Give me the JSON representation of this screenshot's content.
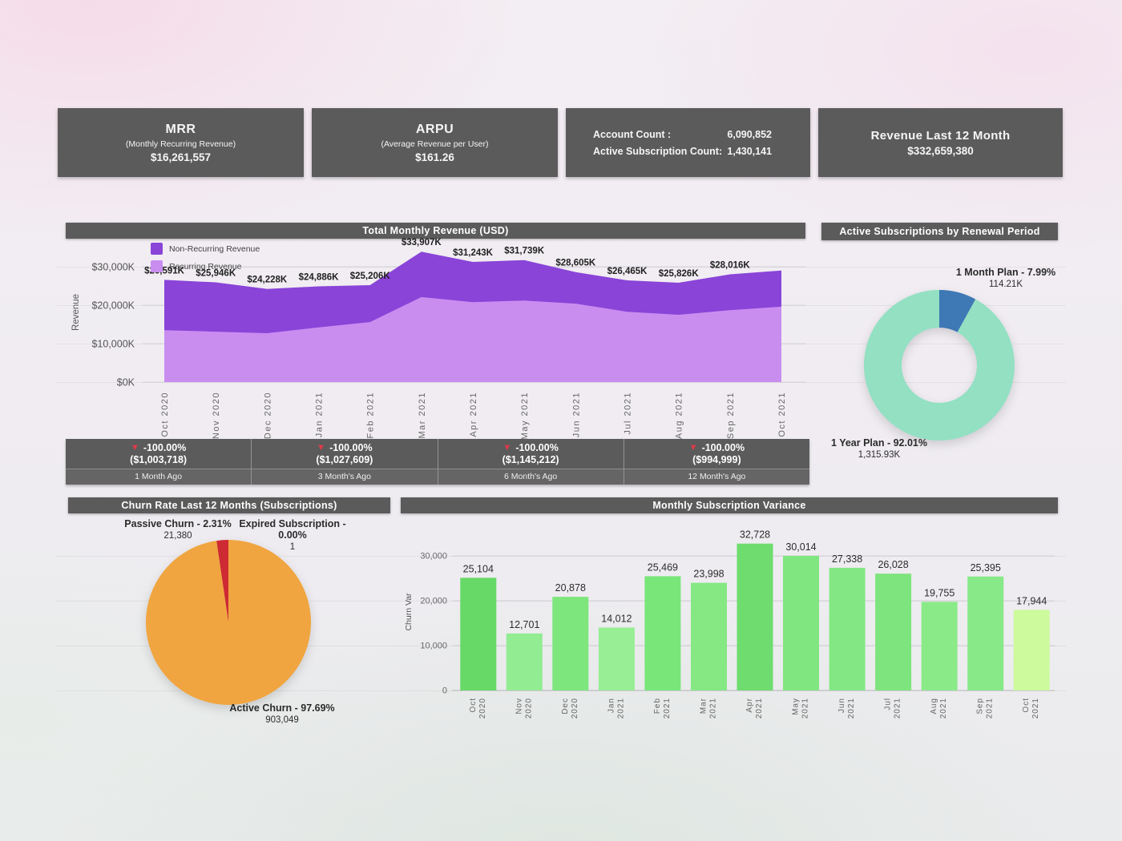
{
  "theme": {
    "card_bg": "#5c5b5c",
    "card_text": "#f5f5f5",
    "title_bar_bg": "#5c5b5c",
    "negative_color": "#e0394a",
    "arrow_glyph": "▼"
  },
  "kpi_cards": [
    {
      "title": "MRR",
      "subtitle": "(Monthly Recurring Revenue)",
      "value": "$16,261,557"
    },
    {
      "title": "ARPU",
      "subtitle": "(Average Revenue per User)",
      "value": "$161.26"
    },
    {
      "rows": [
        {
          "label": "Account Count :",
          "value": "6,090,852"
        },
        {
          "label": "Active Subscription Count:",
          "value": "1,430,141"
        }
      ]
    },
    {
      "title": "Revenue Last 12 Month",
      "value": "$332,659,380"
    }
  ],
  "variance_cards": [
    {
      "pct": "-100.00%",
      "amount": "($1,003,718)",
      "period": "1 Month Ago"
    },
    {
      "pct": "-100.00%",
      "amount": "($1,027,609)",
      "period": "3 Month's Ago"
    },
    {
      "pct": "-100.00%",
      "amount": "($1,145,212)",
      "period": "6 Month's Ago"
    },
    {
      "pct": "-100.00%",
      "amount": "($994,999)",
      "period": "12 Month's Ago"
    }
  ],
  "chart_data": [
    {
      "id": "total-monthly-revenue",
      "type": "area",
      "stacked": true,
      "title": "Total Monthly Revenue (USD)",
      "ylabel": "Revenue",
      "categories": [
        "Oct 2020",
        "Nov 2020",
        "Dec 2020",
        "Jan 2021",
        "Feb 2021",
        "Mar 2021",
        "Apr 2021",
        "May 2021",
        "Jun 2021",
        "Jul 2021",
        "Aug 2021",
        "Sep 2021",
        "Oct 2021"
      ],
      "yticks": [
        "$0K",
        "$10,000K",
        "$20,000K",
        "$30,000K"
      ],
      "ytick_values": [
        0,
        10000,
        20000,
        30000
      ],
      "ylim": [
        0,
        35000
      ],
      "series": [
        {
          "name": "Recurring Revenue",
          "color": "#c98df0",
          "values": [
            13500,
            13100,
            12700,
            14200,
            15600,
            22100,
            20800,
            21200,
            20400,
            18300,
            17500,
            18700,
            19600
          ]
        },
        {
          "name": "Non-Recurring Revenue",
          "color": "#8a44d8",
          "values": [
            13091,
            12846,
            11528,
            10686,
            9606,
            11807,
            10443,
            10539,
            8205,
            8165,
            8326,
            9316,
            9400
          ]
        }
      ],
      "totals": [
        26591,
        25946,
        24228,
        24886,
        25206,
        33907,
        31243,
        31739,
        28605,
        26465,
        25826,
        28016,
        29000
      ],
      "total_labels": [
        "$26,591K",
        "$25,946K",
        "$24,228K",
        "$24,886K",
        "$25,206K",
        "$33,907K",
        "$31,243K",
        "$31,739K",
        "$28,605K",
        "$26,465K",
        "$25,826K",
        "$28,016K",
        ""
      ]
    },
    {
      "id": "active-subscriptions-renewal",
      "type": "donut",
      "title": "Active Subscriptions by Renewal Period",
      "slices": [
        {
          "label": "1 Month Plan",
          "display": "1 Month Plan - 7.99%",
          "value_label": "114.21K",
          "pct": 7.99,
          "color": "#3e78b5"
        },
        {
          "label": "1 Year Plan",
          "display": "1 Year Plan - 92.01%",
          "value_label": "1,315.93K",
          "pct": 92.01,
          "color": "#93e0c3"
        }
      ]
    },
    {
      "id": "churn-rate",
      "type": "pie",
      "title": "Churn Rate Last 12 Months (Subscriptions)",
      "slices": [
        {
          "label": "Passive Churn",
          "display": "Passive Churn - 2.31%",
          "value_label": "21,380",
          "pct": 2.31,
          "color": "#ce2a33"
        },
        {
          "label": "Expired Subscription",
          "display": "Expired Subscription - 0.00%",
          "value_label": "1",
          "pct": 0.0,
          "color": "#f0a540"
        },
        {
          "label": "Active Churn",
          "display": "Active Churn - 97.69%",
          "value_label": "903,049",
          "pct": 97.69,
          "color": "#f0a540"
        }
      ]
    },
    {
      "id": "monthly-subscription-variance",
      "type": "bar",
      "title": "Monthly Subscription Variance",
      "ylabel": "Churn Var",
      "categories": [
        "Oct 2020",
        "Nov 2020",
        "Dec 2020",
        "Jan 2021",
        "Feb 2021",
        "Mar 2021",
        "Apr 2021",
        "May 2021",
        "Jun 2021",
        "Jul 2021",
        "Aug 2021",
        "Sep 2021",
        "Oct 2021"
      ],
      "values": [
        25104,
        12701,
        20878,
        14012,
        25469,
        23998,
        32728,
        30014,
        27338,
        26028,
        19755,
        25395,
        17944
      ],
      "value_labels": [
        "25,104",
        "12,701",
        "20,878",
        "14,012",
        "25,469",
        "23,998",
        "32,728",
        "30,014",
        "27,338",
        "26,028",
        "19,755",
        "25,395",
        "17,944"
      ],
      "bar_colors": [
        "#66d966",
        "#92ec92",
        "#7de67d",
        "#97ee94",
        "#79e679",
        "#85e883",
        "#6edc6e",
        "#80e680",
        "#83e883",
        "#7ee47e",
        "#8aea87",
        "#87e987",
        "#cdfa9d"
      ],
      "yticks": [
        "0",
        "10,000",
        "20,000",
        "30,000"
      ],
      "ytick_values": [
        0,
        10000,
        20000,
        30000
      ],
      "ylim": [
        0,
        34000
      ],
      "grid": true,
      "legend": "none"
    }
  ]
}
